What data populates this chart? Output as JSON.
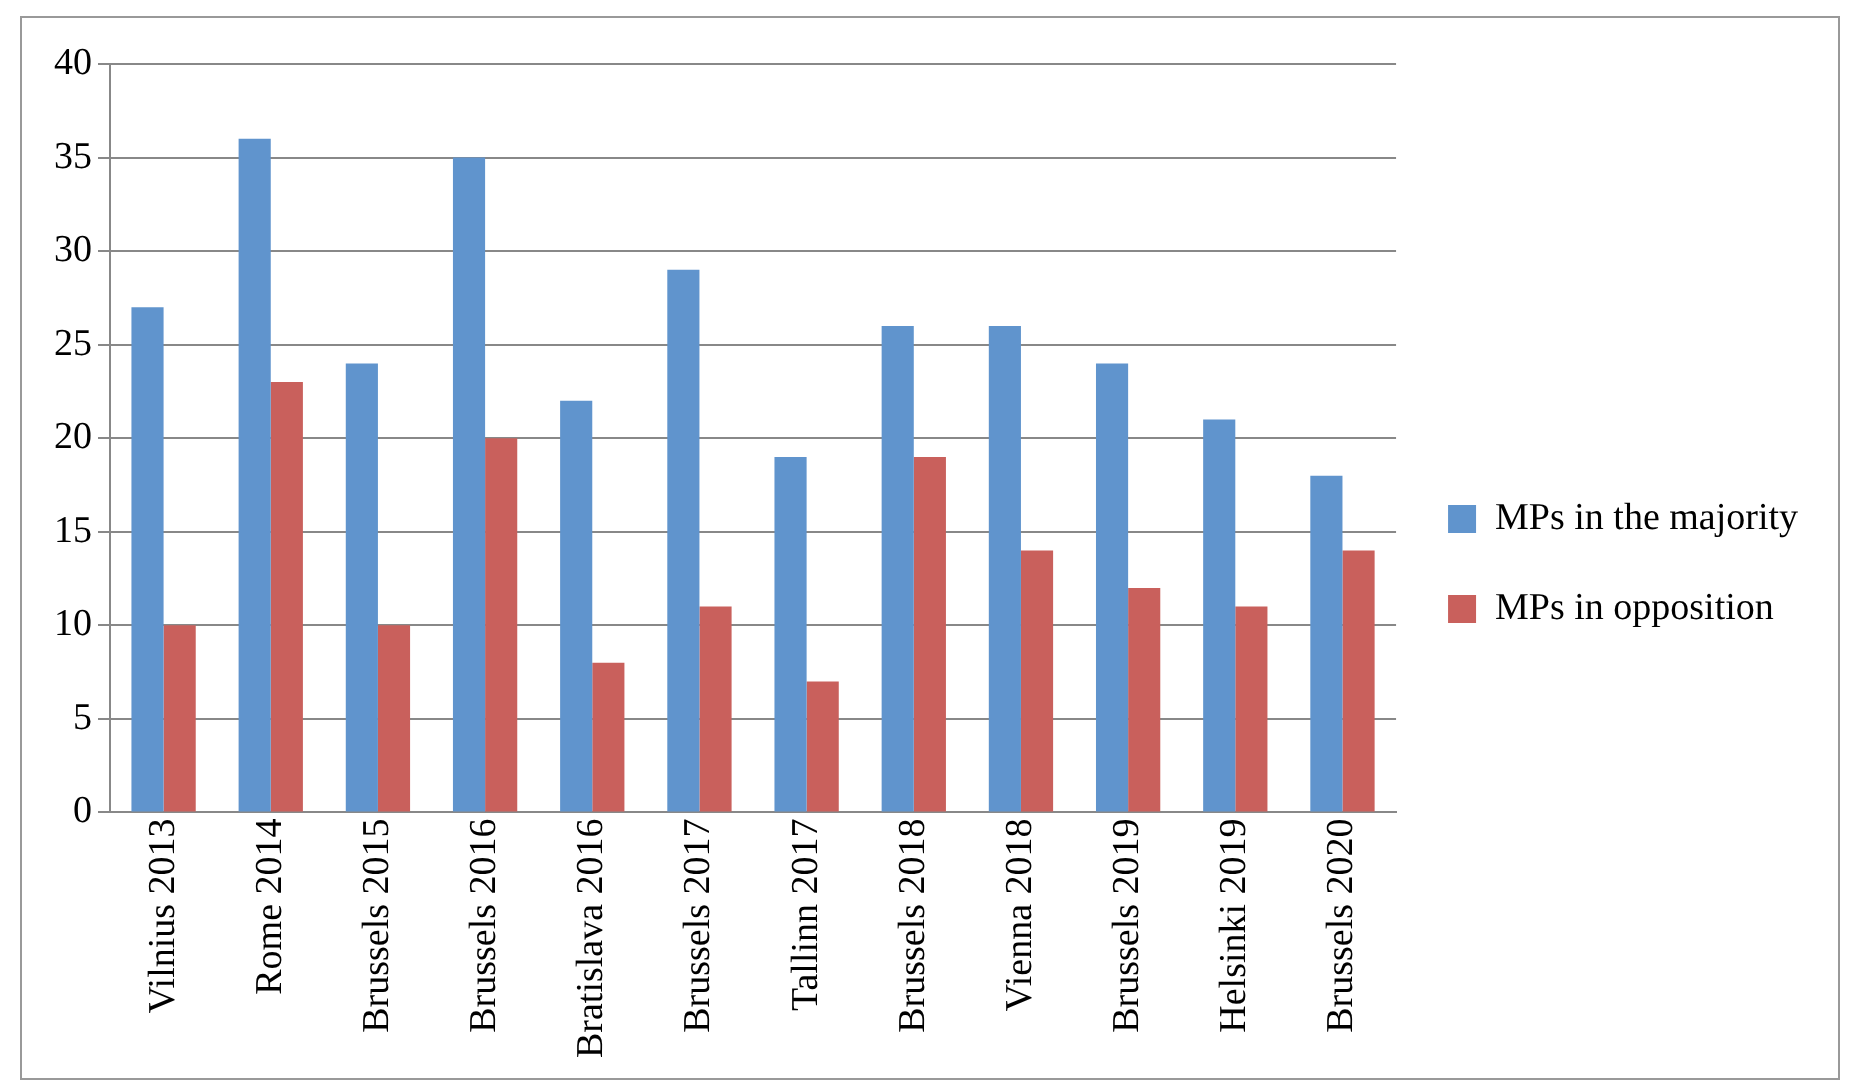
{
  "chart_data": {
    "type": "bar",
    "categories": [
      "Vilnius 2013",
      "Rome 2014",
      "Brussels 2015",
      "Brussels 2016",
      "Bratislava 2016",
      "Brussels 2017",
      "Tallinn 2017",
      "Brussels 2018",
      "Vienna 2018",
      "Brussels 2019",
      "Helsinki 2019",
      "Brussels 2020"
    ],
    "series": [
      {
        "name": "MPs in the majority",
        "color": "#6094cd",
        "values": [
          27,
          36,
          24,
          35,
          22,
          29,
          19,
          26,
          26,
          24,
          21,
          18
        ]
      },
      {
        "name": "MPs in opposition",
        "color": "#c9605c",
        "values": [
          10,
          23,
          10,
          20,
          8,
          11,
          7,
          19,
          14,
          12,
          11,
          14
        ]
      }
    ],
    "ylim": [
      0,
      40
    ],
    "yticks": [
      0,
      5,
      10,
      15,
      20,
      25,
      30,
      35,
      40
    ],
    "grid": "y",
    "legend": "right"
  }
}
